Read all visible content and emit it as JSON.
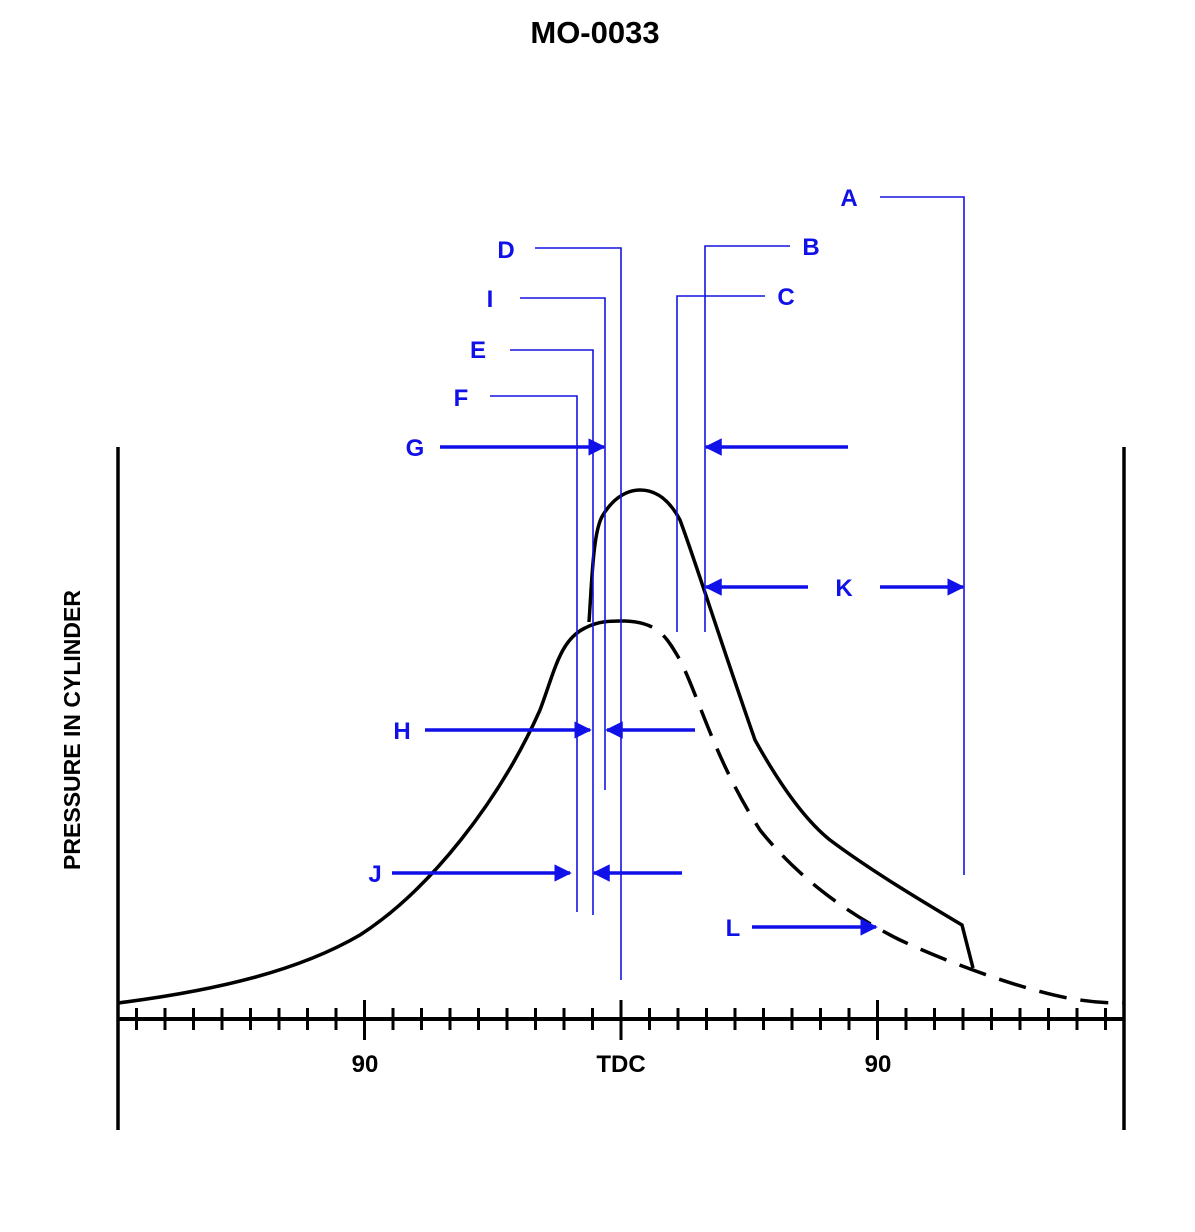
{
  "title": "MO-0033",
  "y_axis_label": "PRESSURE IN CYLINDER",
  "x_axis_labels": {
    "left": "90",
    "center": "TDC",
    "right": "90"
  },
  "markers": {
    "A": "A",
    "B": "B",
    "C": "C",
    "D": "D",
    "E": "E",
    "F": "F",
    "G": "G",
    "H": "H",
    "I": "I",
    "J": "J",
    "K": "K",
    "L": "L"
  },
  "colors": {
    "annotation": "#1010e8",
    "curve": "#000000"
  }
}
